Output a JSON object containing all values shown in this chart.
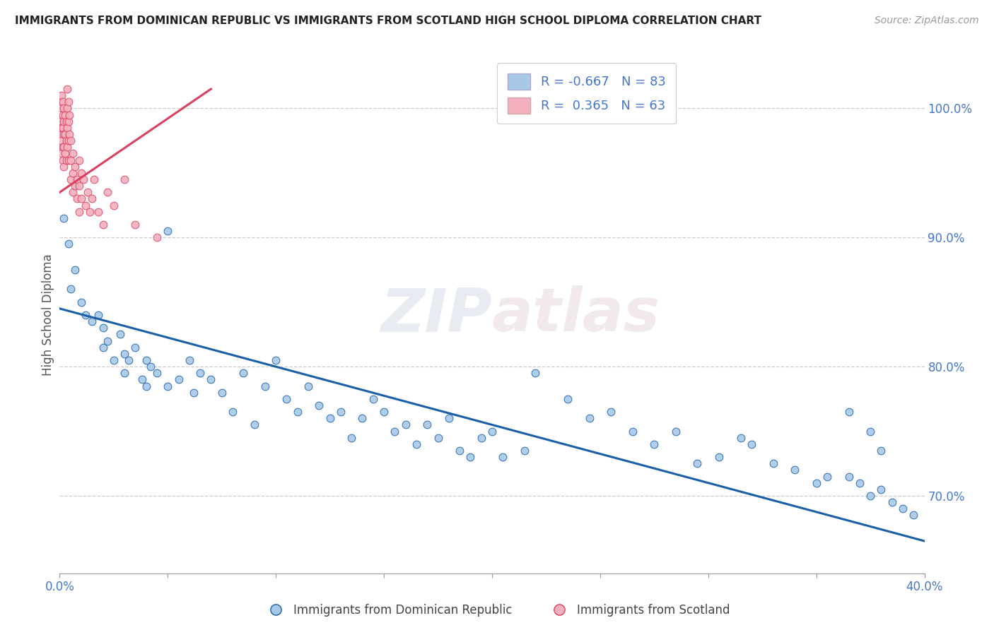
{
  "title": "IMMIGRANTS FROM DOMINICAN REPUBLIC VS IMMIGRANTS FROM SCOTLAND HIGH SCHOOL DIPLOMA CORRELATION CHART",
  "source": "Source: ZipAtlas.com",
  "ylabel": "High School Diploma",
  "legend_label_blue": "Immigrants from Dominican Republic",
  "legend_label_pink": "Immigrants from Scotland",
  "r_blue": "-0.667",
  "n_blue": "83",
  "r_pink": "0.365",
  "n_pink": "63",
  "watermark": "ZIPatlas",
  "xmin": 0.0,
  "xmax": 40.0,
  "ymin": 64.0,
  "ymax": 104.0,
  "yticks": [
    70.0,
    80.0,
    90.0,
    100.0
  ],
  "color_blue": "#a8c8e8",
  "color_pink": "#f4b0be",
  "color_trendline_blue": "#1a5fa8",
  "color_trendline_pink": "#d84060",
  "title_color": "#222222",
  "axis_color": "#4477cc",
  "blue_scatter": [
    [
      0.2,
      91.5
    ],
    [
      0.4,
      89.5
    ],
    [
      0.5,
      86.0
    ],
    [
      0.7,
      87.5
    ],
    [
      1.0,
      85.0
    ],
    [
      1.2,
      84.0
    ],
    [
      1.5,
      83.5
    ],
    [
      1.8,
      84.0
    ],
    [
      2.0,
      83.0
    ],
    [
      2.0,
      81.5
    ],
    [
      2.2,
      82.0
    ],
    [
      2.5,
      80.5
    ],
    [
      2.8,
      82.5
    ],
    [
      3.0,
      81.0
    ],
    [
      3.0,
      79.5
    ],
    [
      3.2,
      80.5
    ],
    [
      3.5,
      81.5
    ],
    [
      3.8,
      79.0
    ],
    [
      4.0,
      80.5
    ],
    [
      4.0,
      78.5
    ],
    [
      4.2,
      80.0
    ],
    [
      4.5,
      79.5
    ],
    [
      5.0,
      78.5
    ],
    [
      5.5,
      79.0
    ],
    [
      6.0,
      80.5
    ],
    [
      6.2,
      78.0
    ],
    [
      6.5,
      79.5
    ],
    [
      7.0,
      79.0
    ],
    [
      7.5,
      78.0
    ],
    [
      8.0,
      76.5
    ],
    [
      8.5,
      79.5
    ],
    [
      9.0,
      75.5
    ],
    [
      9.5,
      78.5
    ],
    [
      10.0,
      80.5
    ],
    [
      10.5,
      77.5
    ],
    [
      11.0,
      76.5
    ],
    [
      11.5,
      78.5
    ],
    [
      12.0,
      77.0
    ],
    [
      12.5,
      76.0
    ],
    [
      13.0,
      76.5
    ],
    [
      13.5,
      74.5
    ],
    [
      14.0,
      76.0
    ],
    [
      14.5,
      77.5
    ],
    [
      15.0,
      76.5
    ],
    [
      15.5,
      75.0
    ],
    [
      16.0,
      75.5
    ],
    [
      16.5,
      74.0
    ],
    [
      17.0,
      75.5
    ],
    [
      17.5,
      74.5
    ],
    [
      18.0,
      76.0
    ],
    [
      18.5,
      73.5
    ],
    [
      19.0,
      73.0
    ],
    [
      19.5,
      74.5
    ],
    [
      20.0,
      75.0
    ],
    [
      20.5,
      73.0
    ],
    [
      21.5,
      73.5
    ],
    [
      22.0,
      79.5
    ],
    [
      23.5,
      77.5
    ],
    [
      24.5,
      76.0
    ],
    [
      25.5,
      76.5
    ],
    [
      26.5,
      75.0
    ],
    [
      27.5,
      74.0
    ],
    [
      28.5,
      75.0
    ],
    [
      29.5,
      72.5
    ],
    [
      30.5,
      73.0
    ],
    [
      31.5,
      74.5
    ],
    [
      32.0,
      74.0
    ],
    [
      33.0,
      72.5
    ],
    [
      34.0,
      72.0
    ],
    [
      35.0,
      71.0
    ],
    [
      35.5,
      71.5
    ],
    [
      36.5,
      71.5
    ],
    [
      37.0,
      71.0
    ],
    [
      37.5,
      70.0
    ],
    [
      38.0,
      70.5
    ],
    [
      38.5,
      69.5
    ],
    [
      39.0,
      69.0
    ],
    [
      39.5,
      68.5
    ],
    [
      36.5,
      76.5
    ],
    [
      37.5,
      75.0
    ],
    [
      38.0,
      73.5
    ],
    [
      5.0,
      90.5
    ]
  ],
  "pink_scatter": [
    [
      0.05,
      100.5
    ],
    [
      0.05,
      99.0
    ],
    [
      0.05,
      98.0
    ],
    [
      0.1,
      101.0
    ],
    [
      0.1,
      100.0
    ],
    [
      0.1,
      99.0
    ],
    [
      0.1,
      98.5
    ],
    [
      0.1,
      97.5
    ],
    [
      0.1,
      96.5
    ],
    [
      0.15,
      100.5
    ],
    [
      0.15,
      99.5
    ],
    [
      0.15,
      98.5
    ],
    [
      0.15,
      97.0
    ],
    [
      0.15,
      96.0
    ],
    [
      0.2,
      100.0
    ],
    [
      0.2,
      99.0
    ],
    [
      0.2,
      98.0
    ],
    [
      0.2,
      97.0
    ],
    [
      0.2,
      95.5
    ],
    [
      0.25,
      99.5
    ],
    [
      0.25,
      98.0
    ],
    [
      0.25,
      96.5
    ],
    [
      0.3,
      99.0
    ],
    [
      0.3,
      97.5
    ],
    [
      0.3,
      96.0
    ],
    [
      0.35,
      101.5
    ],
    [
      0.35,
      100.0
    ],
    [
      0.35,
      98.5
    ],
    [
      0.35,
      97.0
    ],
    [
      0.4,
      100.5
    ],
    [
      0.4,
      99.0
    ],
    [
      0.4,
      97.5
    ],
    [
      0.4,
      96.0
    ],
    [
      0.45,
      99.5
    ],
    [
      0.45,
      98.0
    ],
    [
      0.5,
      97.5
    ],
    [
      0.5,
      96.0
    ],
    [
      0.5,
      94.5
    ],
    [
      0.6,
      96.5
    ],
    [
      0.6,
      95.0
    ],
    [
      0.6,
      93.5
    ],
    [
      0.7,
      95.5
    ],
    [
      0.7,
      94.0
    ],
    [
      0.8,
      94.5
    ],
    [
      0.8,
      93.0
    ],
    [
      0.9,
      96.0
    ],
    [
      0.9,
      94.0
    ],
    [
      0.9,
      92.0
    ],
    [
      1.0,
      95.0
    ],
    [
      1.0,
      93.0
    ],
    [
      1.1,
      94.5
    ],
    [
      1.2,
      92.5
    ],
    [
      1.3,
      93.5
    ],
    [
      1.4,
      92.0
    ],
    [
      1.5,
      93.0
    ],
    [
      1.6,
      94.5
    ],
    [
      1.8,
      92.0
    ],
    [
      2.0,
      91.0
    ],
    [
      2.2,
      93.5
    ],
    [
      2.5,
      92.5
    ],
    [
      3.0,
      94.5
    ],
    [
      3.5,
      91.0
    ],
    [
      4.5,
      90.0
    ]
  ],
  "blue_trendline_x": [
    0.0,
    40.0
  ],
  "blue_trendline_y": [
    84.5,
    66.5
  ],
  "pink_trendline_x": [
    0.0,
    7.0
  ],
  "pink_trendline_y": [
    93.5,
    101.5
  ]
}
